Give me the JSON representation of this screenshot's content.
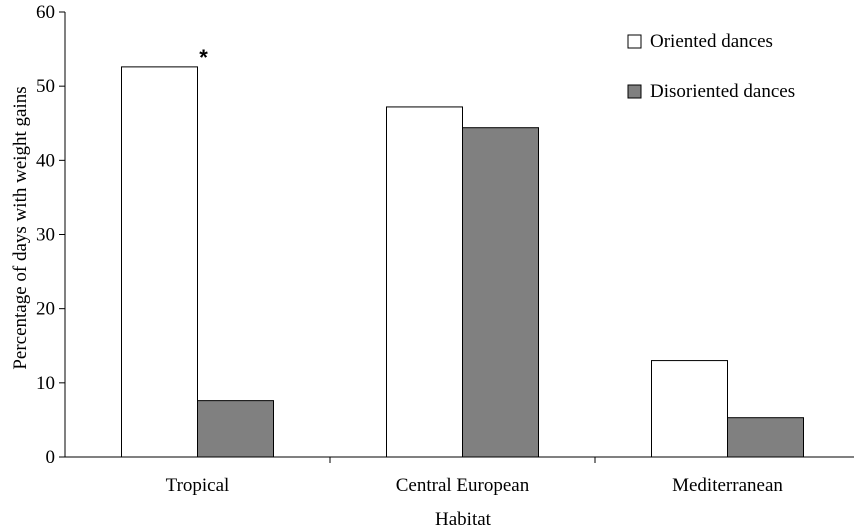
{
  "chart_data": {
    "type": "bar",
    "categories": [
      "Tropical",
      "Central European",
      "Mediterranean"
    ],
    "series": [
      {
        "name": "Oriented dances",
        "values": [
          52.6,
          47.2,
          13.0
        ],
        "color": "#ffffff"
      },
      {
        "name": "Disoriented dances",
        "values": [
          7.6,
          44.4,
          5.3
        ],
        "color": "#808080"
      }
    ],
    "xlabel": "Habitat",
    "ylabel": "Percentage of  days with weight gains",
    "ylim": [
      0,
      60
    ],
    "yticks": [
      0,
      10,
      20,
      30,
      40,
      50,
      60
    ],
    "grid": false,
    "legend_position": "top-right",
    "annotations": [
      {
        "text": "*",
        "category": "Tropical",
        "series": "Oriented dances"
      }
    ]
  }
}
